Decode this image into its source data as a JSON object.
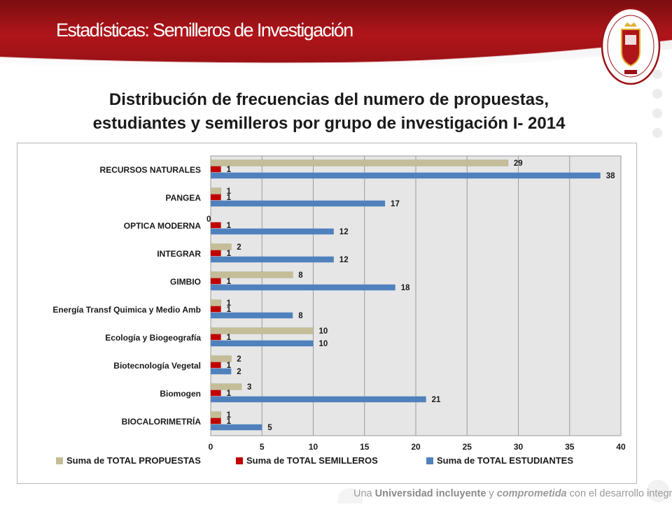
{
  "slide": {
    "title": "Estadísticas: Semilleros de Investigación",
    "heading_line1": "Distribución de frecuencias del numero de propuestas,",
    "heading_line2": "estudiantes y semilleros por grupo de investigación  I- 2014"
  },
  "seal": {
    "text_top": "UNIVERSIDAD DE PAMPLONA",
    "text_bottom": "COLOMBIA"
  },
  "footer": {
    "part1": "Una ",
    "part2": "Universidad incluyente",
    "part3": " y ",
    "part4": "comprometida",
    "part5": " con el desarrollo integral"
  },
  "colors": {
    "banner_red": "#b0151a",
    "propuestas": "#c4bd97",
    "semilleros": "#c00000",
    "estudiantes": "#4f81bd"
  },
  "chart_data": {
    "type": "bar",
    "orientation": "horizontal",
    "categories": [
      "RECURSOS NATURALES",
      "PANGEA",
      "OPTICA MODERNA",
      "INTEGRAR",
      "GIMBIO",
      "Energía Transf Quimica y Medio Amb",
      "Ecología y Biogeografía",
      "Biotecnología Vegetal",
      "Biomogen",
      "BIOCALORIMETRÍA"
    ],
    "series": [
      {
        "name": "Suma de TOTAL PROPUESTAS",
        "color": "#c4bd97",
        "values": [
          29,
          1,
          0,
          2,
          8,
          1,
          10,
          2,
          3,
          1
        ]
      },
      {
        "name": "Suma de TOTAL SEMILLEROS",
        "color": "#c00000",
        "values": [
          1,
          1,
          1,
          1,
          1,
          1,
          1,
          1,
          1,
          1
        ]
      },
      {
        "name": "Suma de TOTAL ESTUDIANTES",
        "color": "#4f81bd",
        "values": [
          38,
          17,
          12,
          12,
          18,
          8,
          10,
          2,
          21,
          5
        ]
      }
    ],
    "xlim": [
      0,
      40
    ],
    "xticks": [
      "0",
      "5",
      "10",
      "15",
      "20",
      "25",
      "30",
      "35",
      "40"
    ],
    "grid": true,
    "legend_position": "bottom"
  }
}
